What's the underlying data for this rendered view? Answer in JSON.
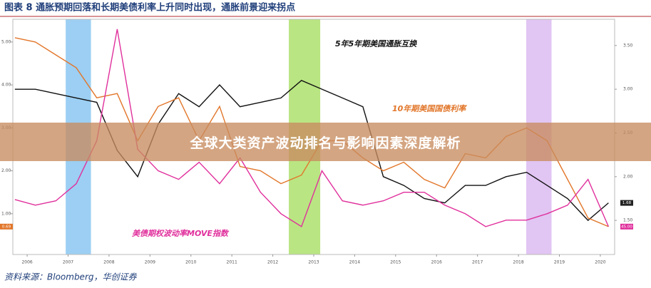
{
  "chart_data": {
    "type": "line",
    "title": "图表 8  通胀预期回落和长期美债利率上升同时出现，通胀前景迎来拐点",
    "source": "资料来源：Bloomberg，华创证券",
    "x": [
      2006.2,
      2006.7,
      2007.2,
      2007.7,
      2008.2,
      2008.7,
      2009.2,
      2009.7,
      2010.2,
      2010.7,
      2011.2,
      2011.7,
      2012.2,
      2012.7,
      2013.2,
      2013.7,
      2014.2,
      2014.7,
      2015.2,
      2015.7,
      2016.2,
      2016.7,
      2017.2,
      2017.7,
      2018.2,
      2018.7,
      2019.2,
      2019.7,
      2020.2,
      2020.7
    ],
    "xlim": [
      2006.15,
      2020.85
    ],
    "xticks": [
      {
        "value": 2006.5,
        "label": "2006"
      },
      {
        "value": 2007.5,
        "label": "2007"
      },
      {
        "value": 2008.5,
        "label": "2008"
      },
      {
        "value": 2009.5,
        "label": "2009"
      },
      {
        "value": 2010.5,
        "label": "2010"
      },
      {
        "value": 2011.5,
        "label": "2011"
      },
      {
        "value": 2012.5,
        "label": "2012"
      },
      {
        "value": 2013.5,
        "label": "2013"
      },
      {
        "value": 2014.5,
        "label": "2014"
      },
      {
        "value": 2015.5,
        "label": "2015"
      },
      {
        "value": 2016.5,
        "label": "2016"
      },
      {
        "value": 2017.5,
        "label": "2017"
      },
      {
        "value": 2018.5,
        "label": "2018"
      },
      {
        "value": 2019.5,
        "label": "2019"
      },
      {
        "value": 2020.5,
        "label": "2020"
      }
    ],
    "ylim": [
      0.05,
      5.53
    ],
    "yticks": [
      {
        "value": 1,
        "label": "1.00"
      },
      {
        "value": 2,
        "label": "2.00"
      },
      {
        "value": 3,
        "label": "3.00"
      },
      {
        "value": 4,
        "label": "4.00"
      },
      {
        "value": 5,
        "label": "5.00"
      }
    ],
    "y2lim": [
      1.11,
      3.8
    ],
    "y2ticks": [
      {
        "value": 1.5,
        "label": "1.50"
      },
      {
        "value": 2,
        "label": "2.00"
      },
      {
        "value": 2.5,
        "label": "2.50"
      },
      {
        "value": 3,
        "label": "3.00"
      },
      {
        "value": 3.5,
        "label": "3.50"
      }
    ],
    "shaded_periods": [
      {
        "x": [
          2007.45,
          2008.05
        ],
        "color": "#7cc0f0"
      },
      {
        "x": [
          2012.9,
          2013.65
        ],
        "color": "#a4dd5a"
      },
      {
        "x": [
          2018.7,
          2019.3
        ],
        "color": "#d7b2f0"
      }
    ],
    "series": [
      {
        "name": "5年5年期美国通胀互换",
        "color": "#111111",
        "axis": "y2",
        "end_label": "1.68",
        "tag_side": "right",
        "values": [
          3.0,
          3.0,
          2.95,
          2.9,
          2.85,
          2.3,
          2.0,
          2.6,
          2.95,
          2.8,
          3.05,
          2.8,
          2.85,
          2.9,
          3.1,
          3.0,
          2.9,
          2.8,
          2.0,
          1.9,
          1.75,
          1.7,
          1.9,
          1.9,
          2.0,
          2.05,
          1.9,
          1.75,
          1.5,
          1.7
        ]
      },
      {
        "name": "10年期美国国债利率",
        "color": "#e2762a",
        "end_label": "0.69",
        "tag_side": "left",
        "values": [
          5.1,
          5.0,
          4.7,
          4.4,
          3.7,
          3.8,
          2.7,
          3.5,
          3.7,
          2.7,
          3.5,
          2.1,
          2.0,
          1.7,
          1.9,
          2.7,
          2.7,
          2.3,
          2.0,
          2.2,
          1.8,
          1.6,
          2.4,
          2.3,
          2.8,
          3.0,
          2.7,
          1.8,
          0.9,
          0.7
        ]
      },
      {
        "name": "美债期权波动率MOVE指数",
        "color": "#e0309c",
        "end_label": "45.00",
        "tag_side": "right",
        "values": [
          1.33,
          1.2,
          1.3,
          1.7,
          2.7,
          5.3,
          2.5,
          2.0,
          1.8,
          2.2,
          1.7,
          2.3,
          1.5,
          1.0,
          0.7,
          2.0,
          1.3,
          1.2,
          1.3,
          1.5,
          1.5,
          1.2,
          1.0,
          0.7,
          0.85,
          0.85,
          1.0,
          1.2,
          1.8,
          0.7
        ]
      }
    ]
  },
  "banner": "全球大类资产波动排名与影响因素深度解析"
}
